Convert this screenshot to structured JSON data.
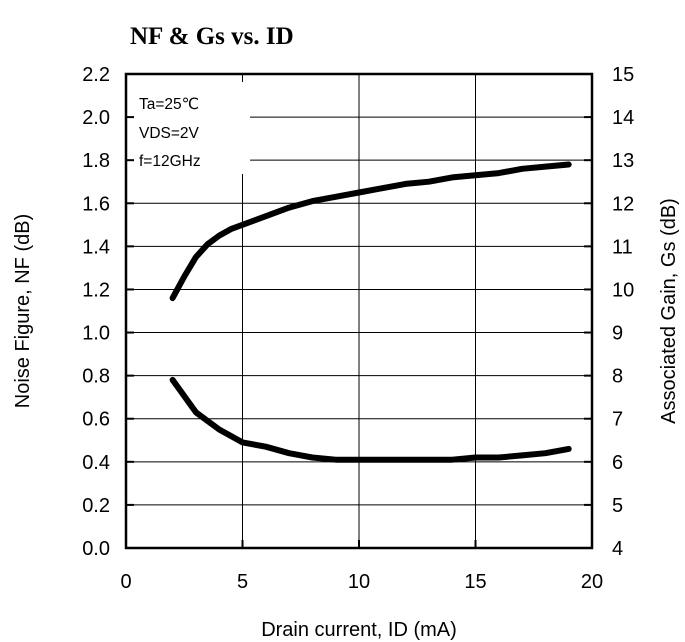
{
  "chart_data": {
    "type": "line",
    "title": "NF & Gs vs. ID",
    "xlabel": "Drain current, ID (mA)",
    "ylabel_left": "Noise Figure, NF (dB)",
    "ylabel_right": "Associated Gain, Gs (dB)",
    "xlim": [
      0,
      20
    ],
    "xticks": [
      0,
      5,
      10,
      15,
      20
    ],
    "ylim_left": [
      0.0,
      2.2
    ],
    "yticks_left": [
      "0.0",
      "0.2",
      "0.4",
      "0.6",
      "0.8",
      "1.0",
      "1.2",
      "1.4",
      "1.6",
      "1.8",
      "2.0",
      "2.2"
    ],
    "ylim_right": [
      4,
      15
    ],
    "yticks_right": [
      "4",
      "5",
      "6",
      "7",
      "8",
      "9",
      "10",
      "11",
      "12",
      "13",
      "14",
      "15"
    ],
    "grid": true,
    "annotations": [
      "Ta=25℃",
      "VDS=2V",
      "f=12GHz"
    ],
    "series": [
      {
        "axis": "right",
        "x": [
          2,
          2.5,
          3,
          3.5,
          4,
          4.5,
          5,
          6,
          7,
          8,
          9,
          10,
          11,
          12,
          13,
          14,
          15,
          16,
          17,
          18,
          19
        ],
        "values": [
          9.8,
          10.3,
          10.75,
          11.05,
          11.25,
          11.4,
          11.5,
          11.7,
          11.9,
          12.05,
          12.15,
          12.25,
          12.35,
          12.45,
          12.5,
          12.6,
          12.65,
          12.7,
          12.8,
          12.85,
          12.9
        ]
      },
      {
        "axis": "left",
        "x": [
          2,
          3,
          4,
          5,
          6,
          7,
          8,
          9,
          10,
          11,
          12,
          13,
          14,
          15,
          16,
          17,
          18,
          19
        ],
        "values": [
          0.78,
          0.63,
          0.55,
          0.49,
          0.47,
          0.44,
          0.42,
          0.41,
          0.41,
          0.41,
          0.41,
          0.41,
          0.41,
          0.42,
          0.42,
          0.43,
          0.44,
          0.46
        ]
      }
    ]
  }
}
